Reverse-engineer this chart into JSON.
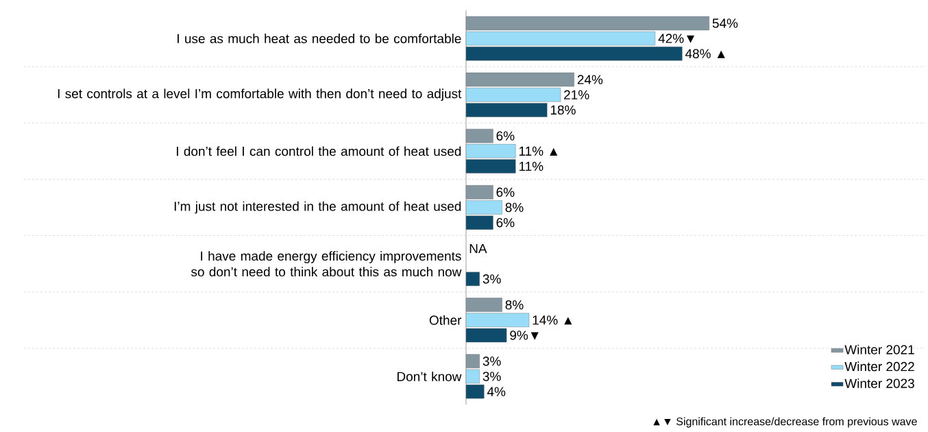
{
  "chart_data": {
    "type": "bar",
    "orientation": "horizontal",
    "legend": "bottom right",
    "categories": [
      "I use as much heat as needed to be comfortable",
      "I set controls at a level I’m comfortable with then don’t need to adjust",
      "I don’t feel I can control the amount of heat used",
      "I’m just not interested in the amount of heat used",
      "I have made energy efficiency improvements so don’t need to think about this as much now",
      "Other",
      "Don’t know"
    ],
    "series": [
      {
        "name": "Winter 2021",
        "color": "#8496a0",
        "values": [
          54,
          24,
          6,
          6,
          null,
          8,
          3
        ],
        "value_labels": [
          "54%",
          "24%",
          "6%",
          "6%",
          "NA",
          "8%",
          "3%"
        ]
      },
      {
        "name": "Winter 2022",
        "color": "#99dcf8",
        "values": [
          42,
          21,
          11,
          8,
          null,
          14,
          3
        ],
        "value_labels": [
          "42%▼",
          "21%",
          "11% ▲",
          "8%",
          null,
          "14% ▲",
          "3%"
        ]
      },
      {
        "name": "Winter 2023",
        "color": "#0f4c6b",
        "values": [
          48,
          18,
          11,
          6,
          3,
          9,
          4
        ],
        "value_labels": [
          "48% ▲",
          "18%",
          "11%",
          "6%",
          "3%",
          "9%▼",
          "4%"
        ]
      }
    ],
    "annotations": [
      "▲▼ Significant increase/decrease from previous wave"
    ]
  }
}
